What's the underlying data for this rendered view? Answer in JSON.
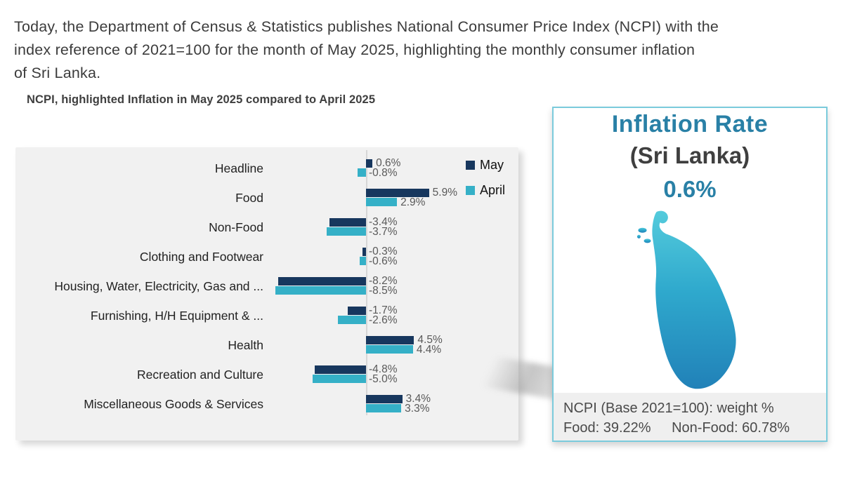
{
  "intro_paragraph": "Today, the Department of Census & Statistics publishes National Consumer Price Index (NCPI) with the\nindex reference of 2021=100 for the month of May 2025, highlighting the monthly consumer inflation\nof Sri Lanka.",
  "chart_title": "NCPI, highlighted Inflation in May 2025 compared to April 2025",
  "chart_data": {
    "type": "bar",
    "orientation": "horizontal",
    "unit": "%",
    "title": "NCPI, highlighted Inflation in May 2025 compared to April 2025",
    "categories": [
      "Headline",
      "Food",
      "Non-Food",
      "Clothing and Footwear",
      "Housing, Water, Electricity, Gas and ...",
      "Furnishing, H/H Equipment & ...",
      "Health",
      "Recreation and Culture",
      "Miscellaneous Goods & Services"
    ],
    "series": [
      {
        "name": "May",
        "color": "#17375E",
        "values": [
          0.6,
          5.9,
          -3.4,
          -0.3,
          -8.2,
          -1.7,
          4.5,
          -4.8,
          3.4
        ]
      },
      {
        "name": "April",
        "color": "#35B0C7",
        "values": [
          -0.8,
          2.9,
          -3.7,
          -0.6,
          -8.5,
          -2.6,
          4.4,
          -5.0,
          3.3
        ]
      }
    ],
    "value_labels": true,
    "legend_position": "top-right",
    "xlim": [
      -9,
      7
    ],
    "gridlines": false,
    "axis_color": "#d6d6d6",
    "background": "#f1f1f1"
  },
  "info_panel": {
    "title": "Inflation Rate",
    "subtitle": "(Sri Lanka)",
    "rate": "0.6%",
    "accent_color": "#2980A6",
    "border_color": "#7bcbdc",
    "map_gradient": [
      "#54CBDC",
      "#2FA9CD",
      "#2181B8"
    ],
    "footer_title": "NCPI (Base 2021=100): weight %",
    "food_weight": "Food: 39.22%",
    "nonfood_weight": "Non-Food: 60.78%"
  }
}
